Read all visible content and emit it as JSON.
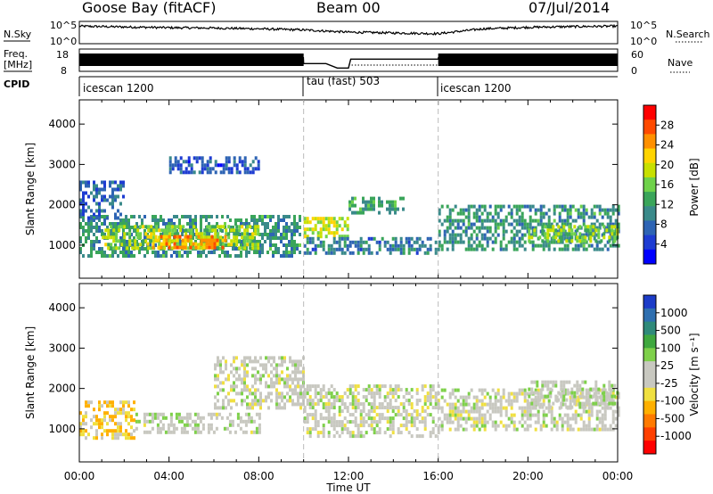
{
  "header": {
    "radar_title": "Goose Bay (fitACF)",
    "beam": "Beam 00",
    "date": "07/Jul/2014"
  },
  "side_labels": {
    "nsky": "N.Sky",
    "nsearch": "N.Search",
    "freq": "Freq.",
    "mhz": "[MHz]",
    "nave": "Nave",
    "cpid": "CPID",
    "noise_top": "10^5",
    "noise_bottom": "10^0",
    "noise_top_right": "10^5",
    "noise_bottom_right": "10^0",
    "freq_top": "18",
    "freq_bottom": "8",
    "nave_top": "60",
    "nave_bottom": "0"
  },
  "cpid_segments": [
    {
      "label": "icescan 1200",
      "start_hour": 0
    },
    {
      "label": "tau (fast) 503",
      "start_hour": 10
    },
    {
      "label": "icescan 1200",
      "start_hour": 16
    }
  ],
  "axes": {
    "xlabel": "Time UT",
    "x_ticks": [
      "00:00",
      "04:00",
      "08:00",
      "12:00",
      "16:00",
      "20:00",
      "00:00"
    ],
    "x_tick_hours": [
      0,
      4,
      8,
      12,
      16,
      20,
      24
    ],
    "ylabel": "Slant Range [km]",
    "y_ticks": [
      "1000",
      "2000",
      "3000",
      "4000"
    ],
    "y_tick_values": [
      1000,
      2000,
      3000,
      4000
    ],
    "ylim": [
      180,
      4600
    ],
    "xlim_hours": [
      0,
      24
    ],
    "mode_change_hours": [
      10,
      16
    ]
  },
  "colorbars": {
    "power": {
      "label": "Power [dB]",
      "ticks": [
        "28",
        "24",
        "20",
        "16",
        "12",
        "8",
        "4"
      ],
      "colors": [
        "#ff0000",
        "#ff4a00",
        "#ff9000",
        "#ffd400",
        "#c8e000",
        "#6fd24a",
        "#3aa55a",
        "#3a8a8a",
        "#2e64b4",
        "#1e3cd2",
        "#0000ff"
      ]
    },
    "velocity": {
      "label": "Velocity [m s⁻¹]",
      "ticks": [
        "1000",
        "500",
        "100",
        "25",
        "-25",
        "-100",
        "-500",
        "-1000"
      ],
      "colors": [
        "#1c3cc8",
        "#2f6fb0",
        "#2f8a7a",
        "#3fa83f",
        "#7ed04a",
        "#c8c8c0",
        "#c8c8c0",
        "#f0e040",
        "#ffb000",
        "#ff7a00",
        "#ff4000",
        "#ff0000"
      ]
    }
  },
  "chart_data": [
    {
      "type": "line",
      "title": "Goose Bay (fitACF) Beam 00 07/Jul/2014",
      "panel": "noise",
      "series": [
        {
          "name": "N.Sky",
          "x": [
            0,
            2,
            4,
            6,
            8,
            10,
            12,
            14,
            16,
            18,
            20,
            22,
            24
          ],
          "values": [
            4.2,
            4.0,
            3.8,
            3.7,
            3.5,
            3.2,
            2.6,
            2.4,
            2.2,
            3.5,
            3.9,
            4.1,
            4.2
          ]
        }
      ],
      "ylim": [
        0,
        5
      ],
      "log_scale": true
    },
    {
      "type": "line",
      "panel": "frequency",
      "series": [
        {
          "name": "Freq.",
          "x": [
            0,
            9.99,
            10,
            11.9,
            12,
            16,
            16.01,
            24
          ],
          "values": [
            12,
            12,
            12,
            12,
            12,
            12,
            12,
            12
          ]
        },
        {
          "name": "Nave",
          "x": [
            0,
            9.99,
            10,
            11.0,
            11.5,
            12.0,
            12.1,
            16,
            16.01,
            24
          ],
          "values": [
            40,
            40,
            20,
            20,
            5,
            5,
            35,
            35,
            40,
            40
          ]
        }
      ]
    },
    {
      "type": "heatmap",
      "panel": "power",
      "zlabel": "Power [dB]",
      "zlim": [
        0,
        30
      ],
      "xlim_hours": [
        0,
        24
      ],
      "ylim": [
        180,
        4600
      ],
      "blobs": [
        {
          "t0": 0.0,
          "t1": 9.8,
          "r0": 750,
          "r1": 1750,
          "value": 10
        },
        {
          "t0": 1.0,
          "t1": 8.0,
          "r0": 900,
          "r1": 1500,
          "value": 16
        },
        {
          "t0": 3.0,
          "t1": 6.5,
          "r0": 950,
          "r1": 1250,
          "value": 24
        },
        {
          "t0": 0.0,
          "t1": 2.0,
          "r0": 1700,
          "r1": 2600,
          "value": 6
        },
        {
          "t0": 4.0,
          "t1": 8.0,
          "r0": 2800,
          "r1": 3200,
          "value": 5
        },
        {
          "t0": 10.0,
          "t1": 12.0,
          "r0": 1200,
          "r1": 1700,
          "value": 18
        },
        {
          "t0": 12.0,
          "t1": 14.5,
          "r0": 1800,
          "r1": 2200,
          "value": 12
        },
        {
          "t0": 10.0,
          "t1": 16.0,
          "r0": 800,
          "r1": 1200,
          "value": 8
        },
        {
          "t0": 16.0,
          "t1": 24.0,
          "r0": 900,
          "r1": 2000,
          "value": 10
        },
        {
          "t0": 20.0,
          "t1": 24.0,
          "r0": 1100,
          "r1": 1500,
          "value": 15
        }
      ]
    },
    {
      "type": "heatmap",
      "panel": "velocity",
      "zlabel": "Velocity [m s⁻¹]",
      "zlim": [
        -1000,
        1000
      ],
      "xlim_hours": [
        0,
        24
      ],
      "ylim": [
        180,
        4600
      ],
      "blobs": [
        {
          "t0": 0.0,
          "t1": 2.5,
          "r0": 800,
          "r1": 1700,
          "value": -300
        },
        {
          "t0": 2.5,
          "t1": 8.0,
          "r0": 900,
          "r1": 1400,
          "value": 60
        },
        {
          "t0": 6.0,
          "t1": 10.0,
          "r0": 1500,
          "r1": 2800,
          "value": 0
        },
        {
          "t0": 10.0,
          "t1": 16.0,
          "r0": 800,
          "r1": 2100,
          "value": 0
        },
        {
          "t0": 16.0,
          "t1": 24.0,
          "r0": 1000,
          "r1": 2000,
          "value": 0
        },
        {
          "t0": 20.0,
          "t1": 24.0,
          "r0": 1500,
          "r1": 2200,
          "value": 80
        }
      ]
    }
  ]
}
